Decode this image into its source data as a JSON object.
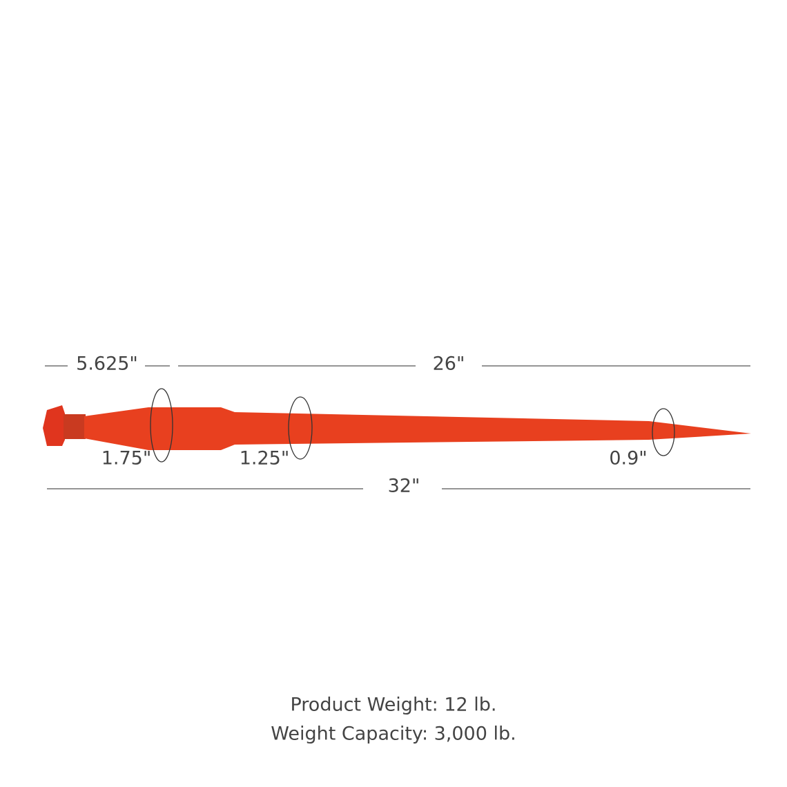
{
  "dimensions": {
    "head_length": "5.625\"",
    "shank_length": "26\"",
    "total_length": "32\"",
    "head_diameter": "1.75\"",
    "shank_diameter": "1.25\"",
    "tip_diameter": "0.9\""
  },
  "specs": {
    "weight": "Product Weight: 12 lb.",
    "capacity": "Weight Capacity: 3,000 lb."
  }
}
